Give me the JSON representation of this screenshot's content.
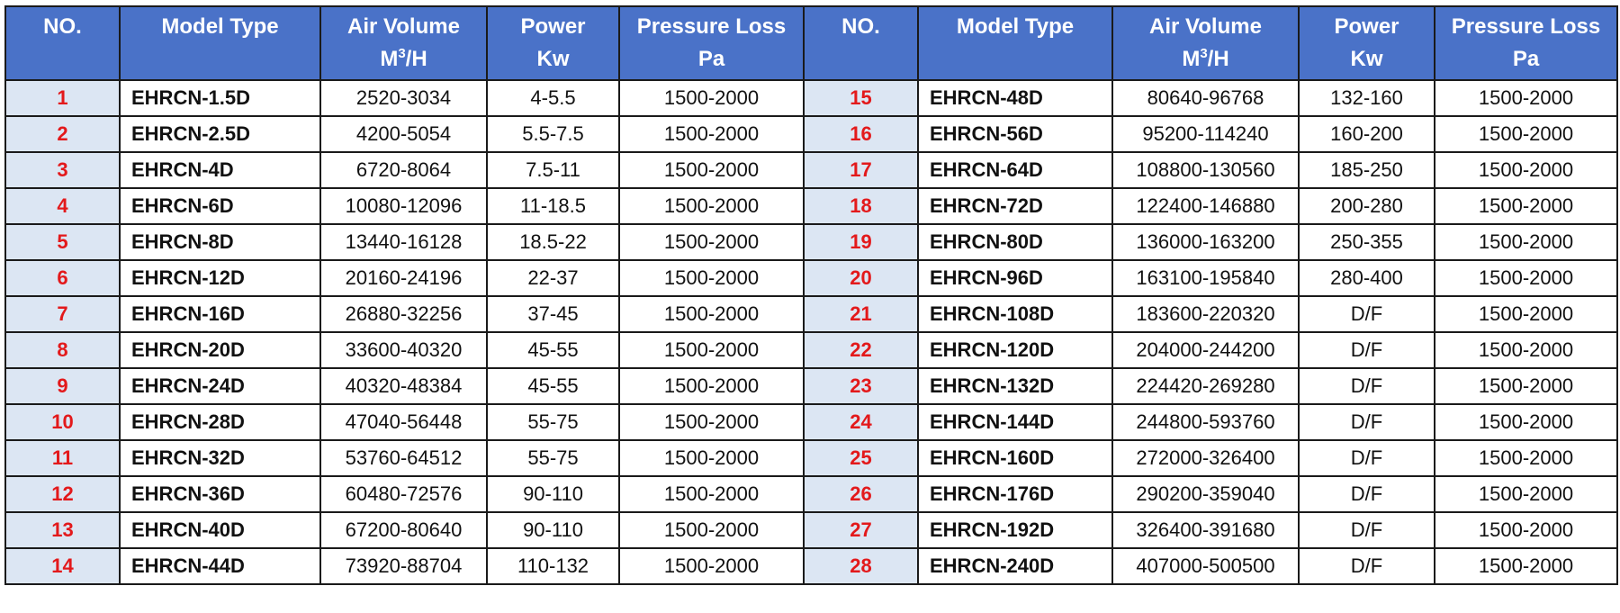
{
  "table": {
    "headers": {
      "no": "NO.",
      "model": "Model Type",
      "air_line1": "Air Volume",
      "air_line2_base": "M",
      "air_line2_sup": "3",
      "air_line2_rest": "/H",
      "power_line1": "Power",
      "power_line2": "Kw",
      "pressure_line1": "Pressure Loss",
      "pressure_line2": "Pa"
    },
    "colors": {
      "header_bg": "#4a72c8",
      "header_text": "#ffffff",
      "number_cell_bg": "#dce6f3",
      "number_text": "#e3191b",
      "border": "#1a1a1a"
    },
    "rows": [
      {
        "left": {
          "no": "1",
          "model": "EHRCN-1.5D",
          "air": "2520-3034",
          "power": "4-5.5",
          "pressure": "1500-2000"
        },
        "right": {
          "no": "15",
          "model": "EHRCN-48D",
          "air": "80640-96768",
          "power": "132-160",
          "pressure": "1500-2000"
        }
      },
      {
        "left": {
          "no": "2",
          "model": "EHRCN-2.5D",
          "air": "4200-5054",
          "power": "5.5-7.5",
          "pressure": "1500-2000"
        },
        "right": {
          "no": "16",
          "model": "EHRCN-56D",
          "air": "95200-114240",
          "power": "160-200",
          "pressure": "1500-2000"
        }
      },
      {
        "left": {
          "no": "3",
          "model": "EHRCN-4D",
          "air": "6720-8064",
          "power": "7.5-11",
          "pressure": "1500-2000"
        },
        "right": {
          "no": "17",
          "model": "EHRCN-64D",
          "air": "108800-130560",
          "power": "185-250",
          "pressure": "1500-2000"
        }
      },
      {
        "left": {
          "no": "4",
          "model": "EHRCN-6D",
          "air": "10080-12096",
          "power": "11-18.5",
          "pressure": "1500-2000"
        },
        "right": {
          "no": "18",
          "model": "EHRCN-72D",
          "air": "122400-146880",
          "power": "200-280",
          "pressure": "1500-2000"
        }
      },
      {
        "left": {
          "no": "5",
          "model": "EHRCN-8D",
          "air": "13440-16128",
          "power": "18.5-22",
          "pressure": "1500-2000"
        },
        "right": {
          "no": "19",
          "model": "EHRCN-80D",
          "air": "136000-163200",
          "power": "250-355",
          "pressure": "1500-2000"
        }
      },
      {
        "left": {
          "no": "6",
          "model": "EHRCN-12D",
          "air": "20160-24196",
          "power": "22-37",
          "pressure": "1500-2000"
        },
        "right": {
          "no": "20",
          "model": "EHRCN-96D",
          "air": "163100-195840",
          "power": "280-400",
          "pressure": "1500-2000"
        }
      },
      {
        "left": {
          "no": "7",
          "model": "EHRCN-16D",
          "air": "26880-32256",
          "power": "37-45",
          "pressure": "1500-2000"
        },
        "right": {
          "no": "21",
          "model": "EHRCN-108D",
          "air": "183600-220320",
          "power": "D/F",
          "pressure": "1500-2000"
        }
      },
      {
        "left": {
          "no": "8",
          "model": "EHRCN-20D",
          "air": "33600-40320",
          "power": "45-55",
          "pressure": "1500-2000"
        },
        "right": {
          "no": "22",
          "model": "EHRCN-120D",
          "air": "204000-244200",
          "power": "D/F",
          "pressure": "1500-2000"
        }
      },
      {
        "left": {
          "no": "9",
          "model": "EHRCN-24D",
          "air": "40320-48384",
          "power": "45-55",
          "pressure": "1500-2000"
        },
        "right": {
          "no": "23",
          "model": "EHRCN-132D",
          "air": "224420-269280",
          "power": "D/F",
          "pressure": "1500-2000"
        }
      },
      {
        "left": {
          "no": "10",
          "model": "EHRCN-28D",
          "air": "47040-56448",
          "power": "55-75",
          "pressure": "1500-2000"
        },
        "right": {
          "no": "24",
          "model": "EHRCN-144D",
          "air": "244800-593760",
          "power": "D/F",
          "pressure": "1500-2000"
        }
      },
      {
        "left": {
          "no": "11",
          "model": "EHRCN-32D",
          "air": "53760-64512",
          "power": "55-75",
          "pressure": "1500-2000"
        },
        "right": {
          "no": "25",
          "model": "EHRCN-160D",
          "air": "272000-326400",
          "power": "D/F",
          "pressure": "1500-2000"
        }
      },
      {
        "left": {
          "no": "12",
          "model": "EHRCN-36D",
          "air": "60480-72576",
          "power": "90-110",
          "pressure": "1500-2000"
        },
        "right": {
          "no": "26",
          "model": "EHRCN-176D",
          "air": "290200-359040",
          "power": "D/F",
          "pressure": "1500-2000"
        }
      },
      {
        "left": {
          "no": "13",
          "model": "EHRCN-40D",
          "air": "67200-80640",
          "power": "90-110",
          "pressure": "1500-2000"
        },
        "right": {
          "no": "27",
          "model": "EHRCN-192D",
          "air": "326400-391680",
          "power": "D/F",
          "pressure": "1500-2000"
        }
      },
      {
        "left": {
          "no": "14",
          "model": "EHRCN-44D",
          "air": "73920-88704",
          "power": "110-132",
          "pressure": "1500-2000"
        },
        "right": {
          "no": "28",
          "model": "EHRCN-240D",
          "air": "407000-500500",
          "power": "D/F",
          "pressure": "1500-2000"
        }
      }
    ]
  }
}
